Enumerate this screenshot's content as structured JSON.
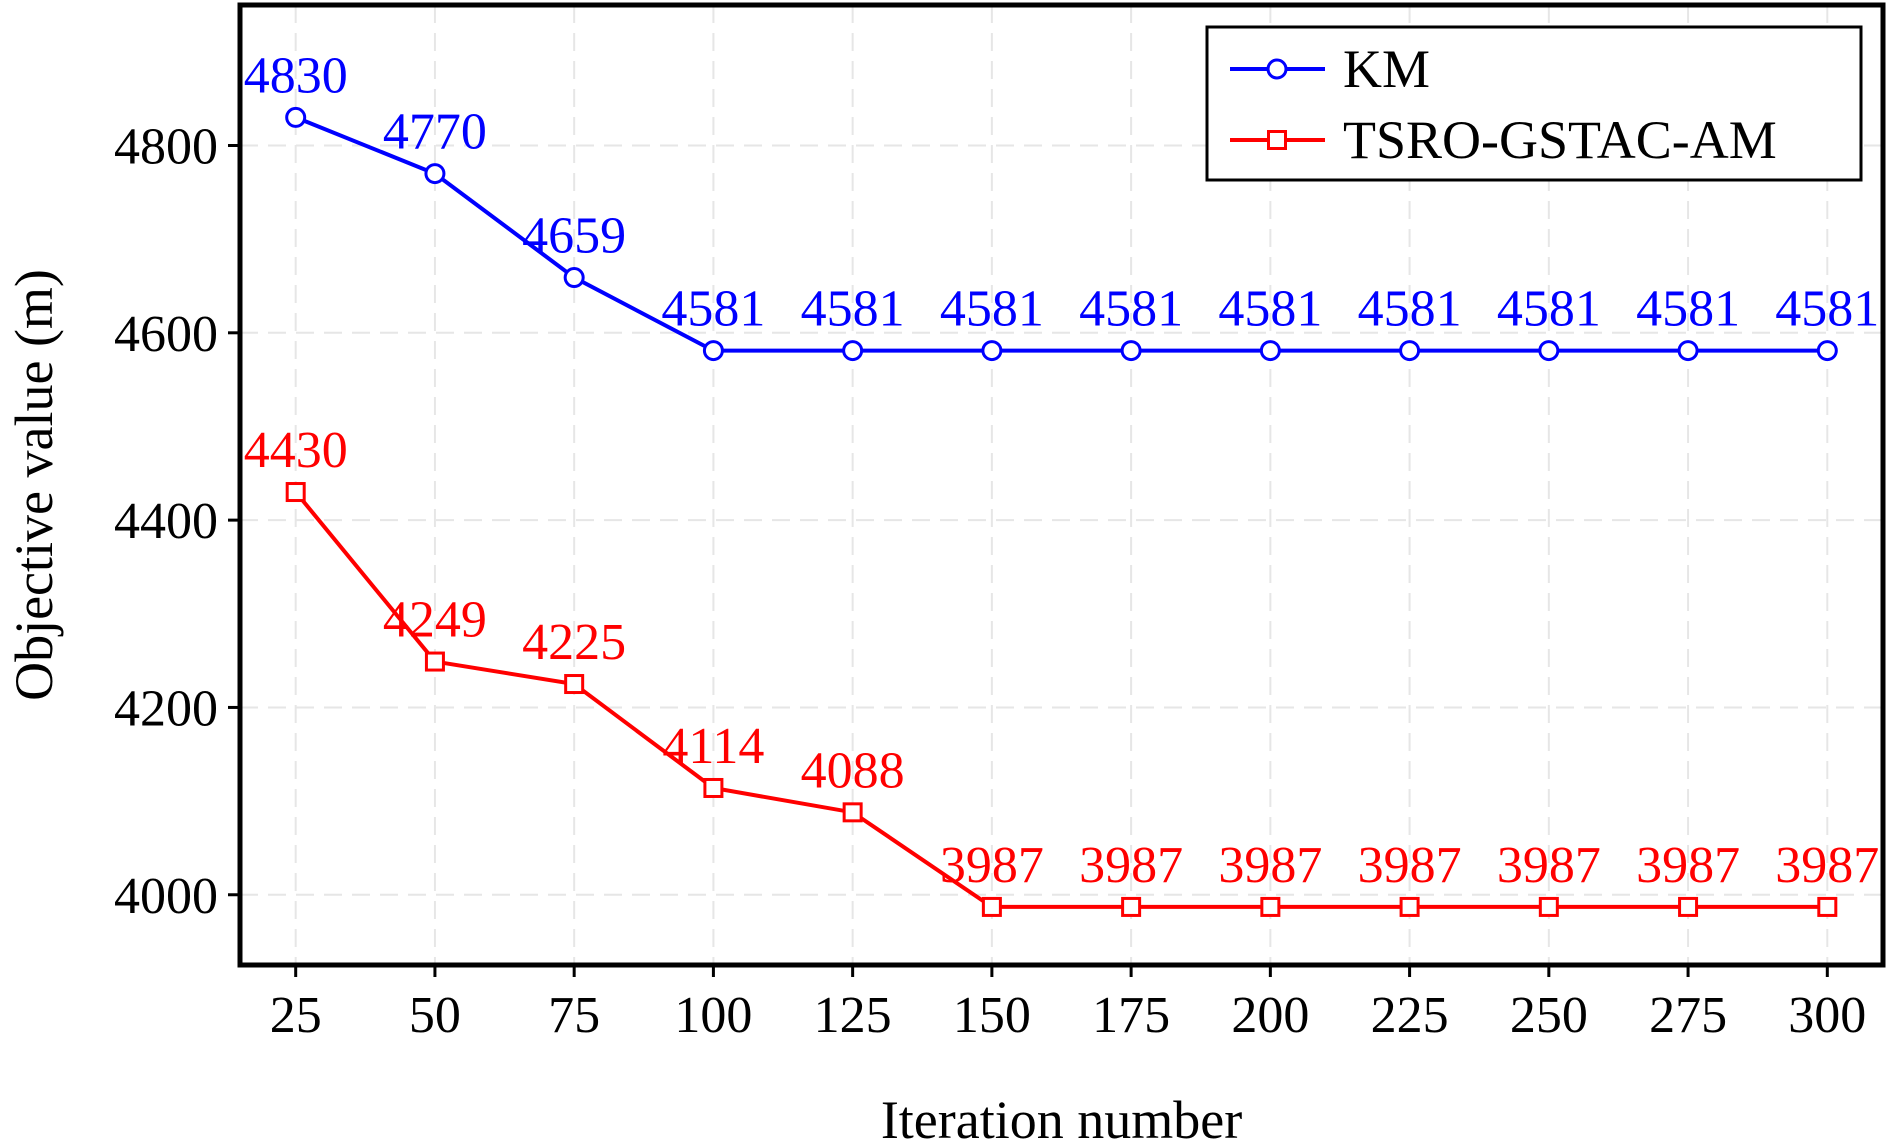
{
  "chart_data": {
    "type": "line",
    "xlabel": "Iteration number",
    "ylabel": "Objective value (m)",
    "x": [
      25,
      50,
      75,
      100,
      125,
      150,
      175,
      200,
      225,
      250,
      275,
      300
    ],
    "xlim": [
      15,
      310
    ],
    "ylim": [
      3925,
      4950
    ],
    "xticks": [
      25,
      50,
      75,
      100,
      125,
      150,
      175,
      200,
      225,
      250,
      275,
      300
    ],
    "yticks": [
      4000,
      4200,
      4400,
      4600,
      4800
    ],
    "grid": true,
    "legend_position": "top-right",
    "series": [
      {
        "name": "KM",
        "color": "#0000ff",
        "marker": "circle",
        "values": [
          4830,
          4770,
          4659,
          4581,
          4581,
          4581,
          4581,
          4581,
          4581,
          4581,
          4581,
          4581
        ],
        "labels": [
          "4830",
          "4770",
          "4659",
          "4581",
          "4581",
          "4581",
          "4581",
          "4581",
          "4581",
          "4581",
          "4581",
          "4581"
        ]
      },
      {
        "name": "TSRO-GSTAC-AM",
        "color": "#ff0000",
        "marker": "square",
        "values": [
          4430,
          4249,
          4225,
          4114,
          4088,
          3987,
          3987,
          3987,
          3987,
          3987,
          3987,
          3987
        ],
        "labels": [
          "4430",
          "4249",
          "4225",
          "4114",
          "4088",
          "3987",
          "3987",
          "3987",
          "3987",
          "3987",
          "3987",
          "3987"
        ]
      }
    ]
  }
}
